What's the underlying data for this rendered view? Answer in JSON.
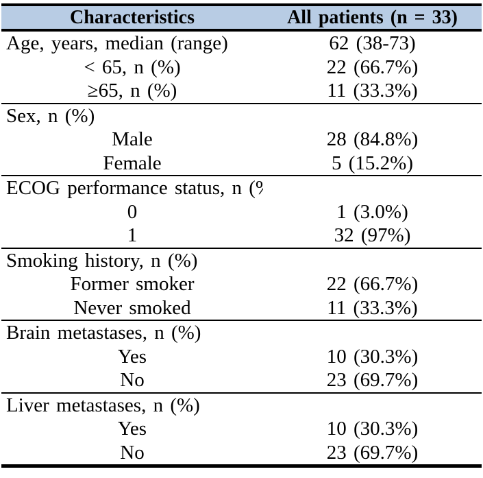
{
  "table": {
    "header": {
      "characteristics": "Characteristics",
      "all_patients": "All patients (n = 33)"
    },
    "sections": [
      {
        "rows": [
          {
            "label": "Age, years, median (range)",
            "value": "62 (38-73)",
            "indent": false
          },
          {
            "label": "< 65, n (%)",
            "value": "22 (66.7%)",
            "indent": true
          },
          {
            "label": "≥65, n (%)",
            "value": "11 (33.3%)",
            "indent": true
          }
        ]
      },
      {
        "rows": [
          {
            "label": "Sex, n (%)",
            "value": "",
            "indent": false
          },
          {
            "label": "Male",
            "value": "28 (84.8%)",
            "indent": true
          },
          {
            "label": "Female",
            "value": "5 (15.2%)",
            "indent": true
          }
        ]
      },
      {
        "rows": [
          {
            "label": "ECOG performance status, n (%)",
            "value": "",
            "indent": false
          },
          {
            "label": "0",
            "value": "1 (3.0%)",
            "indent": true
          },
          {
            "label": "1",
            "value": "32 (97%)",
            "indent": true
          }
        ]
      },
      {
        "rows": [
          {
            "label": "Smoking history, n (%)",
            "value": "",
            "indent": false
          },
          {
            "label": "Former smoker",
            "value": "22 (66.7%)",
            "indent": true
          },
          {
            "label": "Never smoked",
            "value": "11 (33.3%)",
            "indent": true
          }
        ]
      },
      {
        "rows": [
          {
            "label": "Brain metastases, n (%)",
            "value": "",
            "indent": false
          },
          {
            "label": "Yes",
            "value": "10 (30.3%)",
            "indent": true
          },
          {
            "label": "No",
            "value": "23 (69.7%)",
            "indent": true
          }
        ]
      },
      {
        "rows": [
          {
            "label": "Liver metastases, n (%)",
            "value": "",
            "indent": false
          },
          {
            "label": "Yes",
            "value": "10 (30.3%)",
            "indent": true
          },
          {
            "label": "No",
            "value": "23 (69.7%)",
            "indent": true
          }
        ]
      }
    ],
    "colors": {
      "header_bg": "#b8cce4",
      "border": "#000000",
      "text": "#000000"
    }
  }
}
